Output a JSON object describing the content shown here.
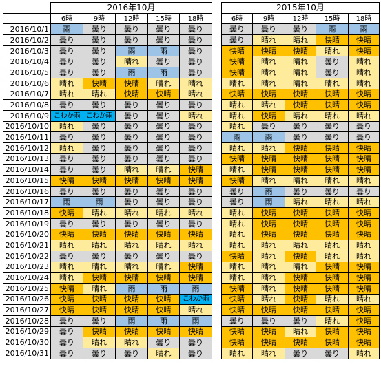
{
  "hours": [
    "6時",
    "9時",
    "12時",
    "15時",
    "18時"
  ],
  "legend": {
    "曇り": "#d9d9d9",
    "晴れ": "#ffeb9c",
    "快晴": "#ffc000",
    "雨": "#9dc3e6",
    "こわか雨": "#00b0f0"
  },
  "tables": [
    {
      "title": "2016年10月",
      "rows": [
        {
          "date": "2016/10/1",
          "w": [
            "雨",
            "曇り",
            "曇り",
            "曇り",
            "曇り"
          ]
        },
        {
          "date": "2016/10/2",
          "w": [
            "曇り",
            "曇り",
            "曇り",
            "曇り",
            "曇り"
          ]
        },
        {
          "date": "2016/10/3",
          "w": [
            "曇り",
            "曇り",
            "雨",
            "雨",
            "曇り"
          ]
        },
        {
          "date": "2016/10/4",
          "w": [
            "曇り",
            "曇り",
            "晴れ",
            "曇り",
            "曇り"
          ]
        },
        {
          "date": "2016/10/5",
          "w": [
            "曇り",
            "曇り",
            "雨",
            "雨",
            "曇り"
          ]
        },
        {
          "date": "2016/10/6",
          "w": [
            "晴れ",
            "快晴",
            "快晴",
            "晴れ",
            "晴れ"
          ]
        },
        {
          "date": "2016/10/7",
          "w": [
            "晴れ",
            "晴れ",
            "快晴",
            "快晴",
            "晴れ"
          ]
        },
        {
          "date": "2016/10/8",
          "w": [
            "曇り",
            "曇り",
            "曇り",
            "曇り",
            "曇り"
          ]
        },
        {
          "date": "2016/10/9",
          "w": [
            "こわか雨",
            "こわか雨",
            "曇り",
            "曇り",
            "晴れ"
          ]
        },
        {
          "date": "2016/10/10",
          "w": [
            "晴れ",
            "曇り",
            "曇り",
            "曇り",
            "曇り"
          ]
        },
        {
          "date": "2016/10/11",
          "w": [
            "曇り",
            "曇り",
            "曇り",
            "曇り",
            "曇り"
          ]
        },
        {
          "date": "2016/10/12",
          "w": [
            "晴れ",
            "曇り",
            "曇り",
            "曇り",
            "曇り"
          ]
        },
        {
          "date": "2016/10/13",
          "w": [
            "曇り",
            "曇り",
            "曇り",
            "曇り",
            "曇り"
          ]
        },
        {
          "date": "2016/10/14",
          "w": [
            "曇り",
            "曇り",
            "晴れ",
            "晴れ",
            "快晴"
          ]
        },
        {
          "date": "2016/10/15",
          "w": [
            "快晴",
            "快晴",
            "快晴",
            "快晴",
            "快晴"
          ]
        },
        {
          "date": "2016/10/16",
          "w": [
            "曇り",
            "曇り",
            "曇り",
            "曇り",
            "曇り"
          ]
        },
        {
          "date": "2016/10/17",
          "w": [
            "雨",
            "雨",
            "曇り",
            "曇り",
            "曇り"
          ]
        },
        {
          "date": "2016/10/18",
          "w": [
            "快晴",
            "晴れ",
            "晴れ",
            "晴れ",
            "晴れ"
          ]
        },
        {
          "date": "2016/10/19",
          "w": [
            "曇り",
            "曇り",
            "曇り",
            "曇り",
            "曇り"
          ]
        },
        {
          "date": "2016/10/20",
          "w": [
            "快晴",
            "快晴",
            "快晴",
            "快晴",
            "快晴"
          ]
        },
        {
          "date": "2016/10/21",
          "w": [
            "晴れ",
            "晴れ",
            "晴れ",
            "晴れ",
            "晴れ"
          ]
        },
        {
          "date": "2016/10/22",
          "w": [
            "曇り",
            "曇り",
            "曇り",
            "曇り",
            "曇り"
          ]
        },
        {
          "date": "2016/10/23",
          "w": [
            "晴れ",
            "晴れ",
            "晴れ",
            "晴れ",
            "快晴"
          ]
        },
        {
          "date": "2016/10/24",
          "w": [
            "晴れ",
            "快晴",
            "快晴",
            "快晴",
            "快晴"
          ]
        },
        {
          "date": "2016/10/25",
          "w": [
            "快晴",
            "晴れ",
            "雨",
            "雨",
            "雨"
          ]
        },
        {
          "date": "2016/10/26",
          "w": [
            "快晴",
            "快晴",
            "快晴",
            "快晴",
            "こわか雨"
          ]
        },
        {
          "date": "2016/10/27",
          "w": [
            "快晴",
            "快晴",
            "快晴",
            "快晴",
            "晴れ"
          ]
        },
        {
          "date": "2016/10/28",
          "w": [
            "曇り",
            "曇り",
            "雨",
            "雨",
            "雨"
          ]
        },
        {
          "date": "2016/10/29",
          "w": [
            "曇り",
            "快晴",
            "快晴",
            "快晴",
            "快晴"
          ]
        },
        {
          "date": "2016/10/30",
          "w": [
            "曇り",
            "晴れ",
            "晴れ",
            "曇り",
            "曇り"
          ]
        },
        {
          "date": "2016/10/31",
          "w": [
            "曇り",
            "曇り",
            "曇り",
            "晴れ",
            "曇り"
          ]
        }
      ]
    },
    {
      "title": "2015年10月",
      "rows": [
        {
          "w": [
            "曇り",
            "曇り",
            "曇り",
            "雨",
            "雨"
          ]
        },
        {
          "w": [
            "曇り",
            "晴れ",
            "晴れ",
            "快晴",
            "快晴"
          ]
        },
        {
          "w": [
            "快晴",
            "快晴",
            "快晴",
            "晴れ",
            "快晴"
          ]
        },
        {
          "w": [
            "快晴",
            "晴れ",
            "晴れ",
            "曇り",
            "晴れ"
          ]
        },
        {
          "w": [
            "快晴",
            "晴れ",
            "晴れ",
            "曇り",
            "晴れ"
          ]
        },
        {
          "w": [
            "晴れ",
            "晴れ",
            "晴れ",
            "晴れ",
            "晴れ"
          ]
        },
        {
          "w": [
            "快晴",
            "快晴",
            "快晴",
            "快晴",
            "快晴"
          ]
        },
        {
          "w": [
            "晴れ",
            "晴れ",
            "快晴",
            "快晴",
            "快晴"
          ]
        },
        {
          "w": [
            "晴れ",
            "快晴",
            "晴れ",
            "晴れ",
            "晴れ"
          ]
        },
        {
          "w": [
            "晴れ",
            "曇り",
            "曇り",
            "曇り",
            "曇り"
          ]
        },
        {
          "w": [
            "雨",
            "雨",
            "曇り",
            "曇り",
            "曇り"
          ]
        },
        {
          "w": [
            "晴れ",
            "晴れ",
            "快晴",
            "快晴",
            "快晴"
          ]
        },
        {
          "w": [
            "快晴",
            "快晴",
            "快晴",
            "快晴",
            "快晴"
          ]
        },
        {
          "w": [
            "晴れ",
            "快晴",
            "快晴",
            "快晴",
            "快晴"
          ]
        },
        {
          "w": [
            "快晴",
            "晴れ",
            "晴れ",
            "晴れ",
            "晴れ"
          ]
        },
        {
          "w": [
            "曇り",
            "雨",
            "曇り",
            "曇り",
            "曇り"
          ]
        },
        {
          "w": [
            "曇り",
            "雨",
            "晴れ",
            "晴れ",
            "晴れ"
          ]
        },
        {
          "w": [
            "晴れ",
            "快晴",
            "快晴",
            "快晴",
            "快晴"
          ]
        },
        {
          "w": [
            "晴れ",
            "快晴",
            "快晴",
            "快晴",
            "快晴"
          ]
        },
        {
          "w": [
            "晴れ",
            "快晴",
            "快晴",
            "快晴",
            "快晴"
          ]
        },
        {
          "w": [
            "晴れ",
            "晴れ",
            "晴れ",
            "晴れ",
            "晴れ"
          ]
        },
        {
          "w": [
            "快晴",
            "晴れ",
            "快晴",
            "晴れ",
            "晴れ"
          ]
        },
        {
          "w": [
            "晴れ",
            "晴れ",
            "晴れ",
            "快晴",
            "快晴"
          ]
        },
        {
          "w": [
            "晴れ",
            "晴れ",
            "快晴",
            "快晴",
            "快晴"
          ]
        },
        {
          "w": [
            "快晴",
            "晴れ",
            "快晴",
            "快晴",
            "快晴"
          ]
        },
        {
          "w": [
            "快晴",
            "晴れ",
            "快晴",
            "晴れ",
            "晴れ"
          ]
        },
        {
          "w": [
            "快晴",
            "快晴",
            "快晴",
            "快晴",
            "快晴"
          ]
        },
        {
          "w": [
            "曇り",
            "曇り",
            "曇り",
            "晴れ",
            "快晴"
          ]
        },
        {
          "w": [
            "快晴",
            "快晴",
            "晴れ",
            "快晴",
            "快晴"
          ]
        },
        {
          "w": [
            "快晴",
            "快晴",
            "快晴",
            "快晴",
            "快晴"
          ]
        },
        {
          "w": [
            "晴れ",
            "晴れ",
            "曇り",
            "曇り",
            "晴れ"
          ]
        }
      ]
    }
  ]
}
